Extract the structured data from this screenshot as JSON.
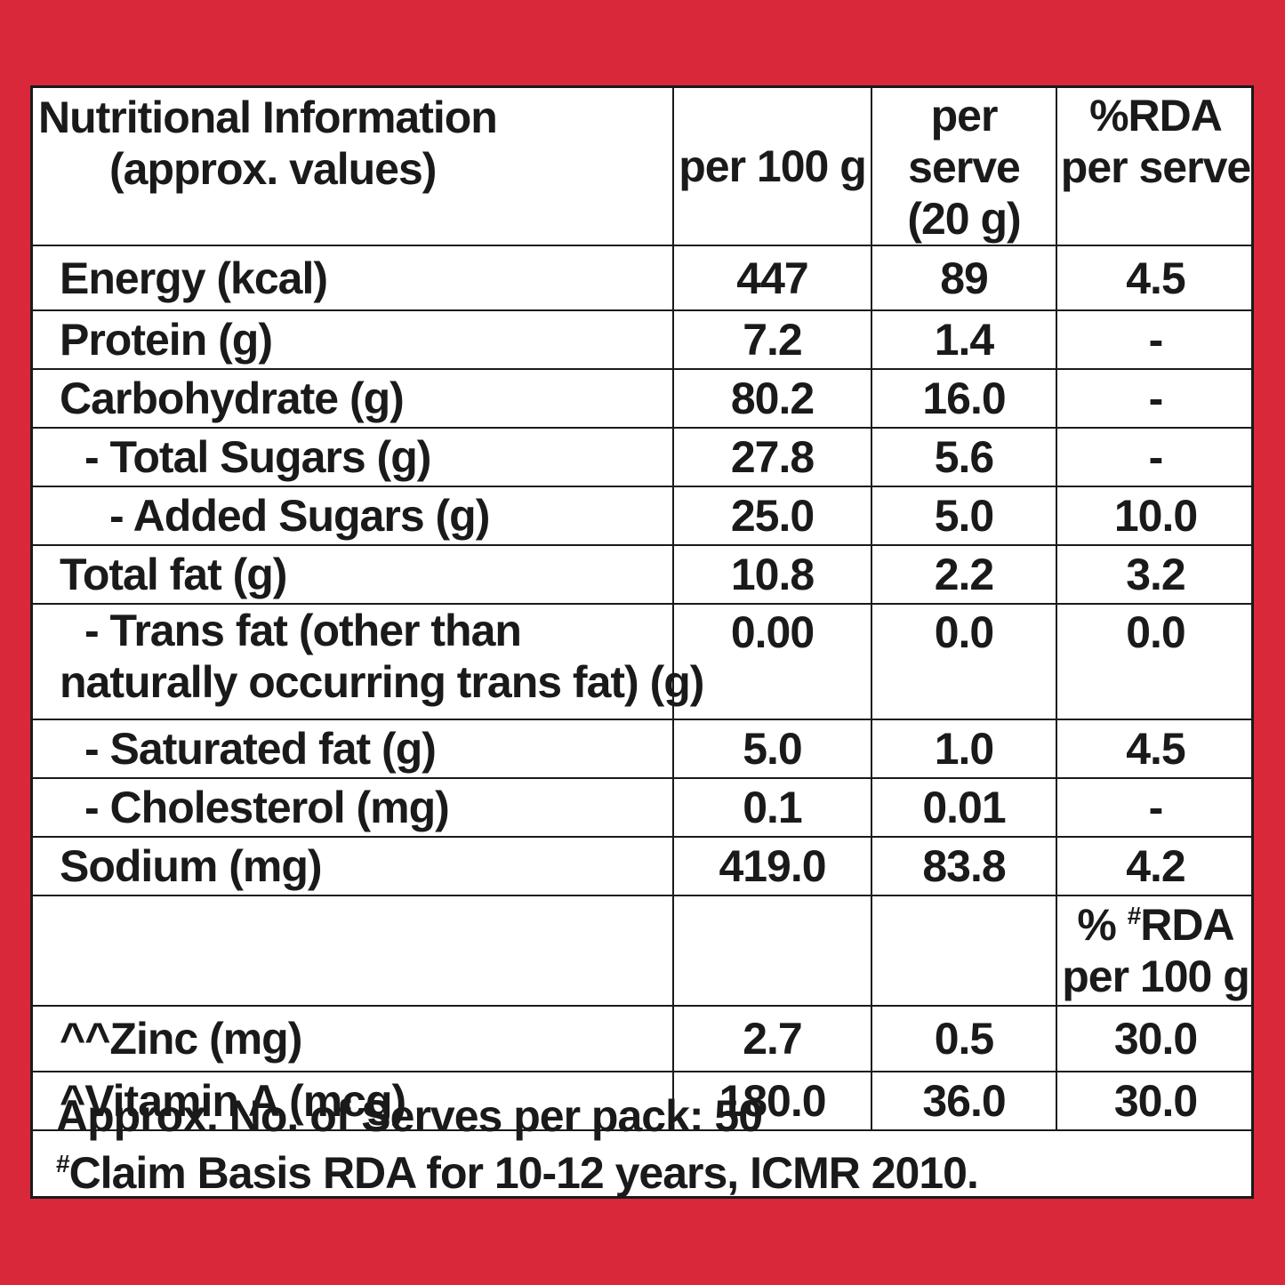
{
  "header": {
    "label_line1": "Nutritional Information",
    "label_line2": "(approx. values)",
    "per100": "per 100 g",
    "perserve_line1": "per serve",
    "perserve_line2": "(20 g)",
    "rda_line1": "%RDA",
    "rda_line2": "per serve"
  },
  "rows": [
    {
      "label": "Energy (kcal)",
      "per100": "447",
      "perserve": "89",
      "rda": "4.5"
    },
    {
      "label": "Protein (g)",
      "per100": "7.2",
      "perserve": "1.4",
      "rda": "-"
    },
    {
      "label": "Carbohydrate (g)",
      "per100": "80.2",
      "perserve": "16.0",
      "rda": "-"
    },
    {
      "label": "- Total Sugars (g)",
      "per100": "27.8",
      "perserve": "5.6",
      "rda": "-"
    },
    {
      "label": "- Added Sugars (g)",
      "per100": "25.0",
      "perserve": "5.0",
      "rda": "10.0"
    },
    {
      "label": "Total fat (g)",
      "per100": "10.8",
      "perserve": "2.2",
      "rda": "3.2"
    },
    {
      "label_line1": "- Trans fat (other than",
      "label_line2": "naturally occurring trans fat) (g)",
      "per100": "0.00",
      "perserve": "0.0",
      "rda": "0.0"
    },
    {
      "label": "- Saturated fat (g)",
      "per100": "5.0",
      "perserve": "1.0",
      "rda": "4.5"
    },
    {
      "label": "- Cholesterol (mg)",
      "per100": "0.1",
      "perserve": "0.01",
      "rda": "-"
    },
    {
      "label": "Sodium (mg)",
      "per100": "419.0",
      "perserve": "83.8",
      "rda": "4.2"
    }
  ],
  "rda100_header": {
    "prefix": "% ",
    "hash": "#",
    "line1_rest": "RDA",
    "line2": "per 100 g"
  },
  "micro_rows": [
    {
      "label": "^^Zinc (mg)",
      "per100": "2.7",
      "perserve": "0.5",
      "rda": "30.0"
    },
    {
      "label": "^Vitamin A (mcg)",
      "per100": "180.0",
      "perserve": "36.0",
      "rda": "30.0"
    }
  ],
  "footer": {
    "serves": "Approx. No. of Serves per pack: 50",
    "claim_hash": "#",
    "claim": "Claim Basis RDA for 10-12 years, ICMR 2010."
  },
  "colors": {
    "background": "#d9283a",
    "panel": "#ffffff",
    "text": "#1a1a1a"
  }
}
